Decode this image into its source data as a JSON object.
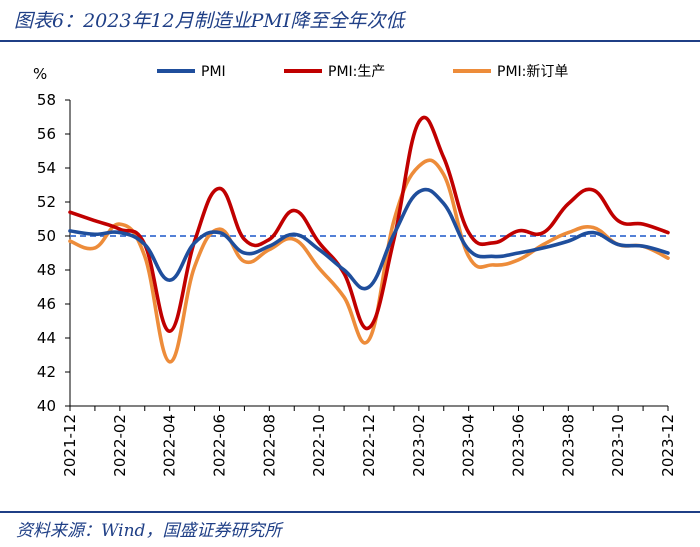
{
  "header": {
    "title": "图表6：2023年12月制造业PMI降至全年次低"
  },
  "footer": {
    "source": "资料来源：Wind，国盛证券研究所"
  },
  "chart_data": {
    "type": "line",
    "ylabel": "%",
    "ylim": [
      40,
      58
    ],
    "yticks": [
      40,
      42,
      44,
      46,
      48,
      50,
      52,
      54,
      56,
      58
    ],
    "reference_line": 50,
    "categories": [
      "2021-12",
      "2022-01",
      "2022-02",
      "2022-03",
      "2022-04",
      "2022-05",
      "2022-06",
      "2022-07",
      "2022-08",
      "2022-09",
      "2022-10",
      "2022-11",
      "2022-12",
      "2023-01",
      "2023-02",
      "2023-03",
      "2023-04",
      "2023-05",
      "2023-06",
      "2023-07",
      "2023-08",
      "2023-09",
      "2023-10",
      "2023-11",
      "2023-12"
    ],
    "tick_labels": [
      "2021-12",
      "2022-02",
      "2022-04",
      "2022-06",
      "2022-08",
      "2022-10",
      "2022-12",
      "2023-02",
      "2023-04",
      "2023-06",
      "2023-08",
      "2023-10",
      "2023-12"
    ],
    "series": [
      {
        "name": "PMI",
        "color": "#1f4e9c",
        "values": [
          50.3,
          50.1,
          50.2,
          49.5,
          47.4,
          49.6,
          50.2,
          49.0,
          49.4,
          50.1,
          49.2,
          48.0,
          47.0,
          50.1,
          52.6,
          51.9,
          49.2,
          48.8,
          49.0,
          49.3,
          49.7,
          50.2,
          49.5,
          49.4,
          49.0
        ]
      },
      {
        "name": "PMI:生产",
        "color": "#c00000",
        "values": [
          51.4,
          50.9,
          50.4,
          49.5,
          44.4,
          49.7,
          52.8,
          49.8,
          49.8,
          51.5,
          49.6,
          47.8,
          44.6,
          49.8,
          56.7,
          54.6,
          50.2,
          49.6,
          50.3,
          50.2,
          51.9,
          52.7,
          50.9,
          50.7,
          50.2
        ]
      },
      {
        "name": "PMI:新订单",
        "color": "#ed8c3a",
        "values": [
          49.7,
          49.3,
          50.7,
          48.8,
          42.6,
          48.2,
          50.4,
          48.5,
          49.2,
          49.8,
          48.1,
          46.4,
          43.9,
          50.9,
          54.1,
          53.6,
          48.8,
          48.3,
          48.6,
          49.5,
          50.2,
          50.5,
          49.5,
          49.4,
          48.7
        ]
      }
    ]
  }
}
